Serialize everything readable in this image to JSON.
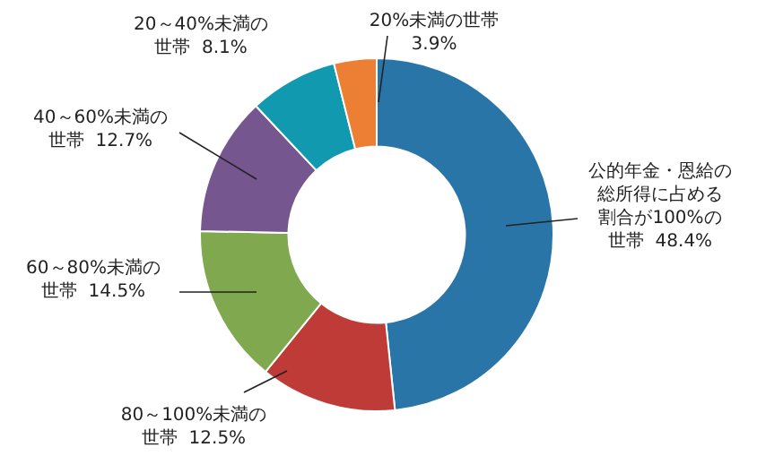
{
  "chart_data": {
    "type": "donut",
    "categories": [
      "公的年金・恩給の総所得に占める割合が100%の世帯",
      "80～100%未満の世帯",
      "60～80%未満の世帯",
      "40～60%未満の世帯",
      "20～40%未満の世帯",
      "20%未満の世帯"
    ],
    "values": [
      48.4,
      12.5,
      14.5,
      12.7,
      8.1,
      3.9
    ],
    "value_labels": [
      "48.4%",
      "12.5%",
      "14.5%",
      "12.7%",
      "8.1%",
      "3.9%"
    ],
    "colors": [
      "#2a75a8",
      "#bf3b37",
      "#80a84e",
      "#76568f",
      "#1199b0",
      "#ec7f33"
    ],
    "legend": false
  }
}
